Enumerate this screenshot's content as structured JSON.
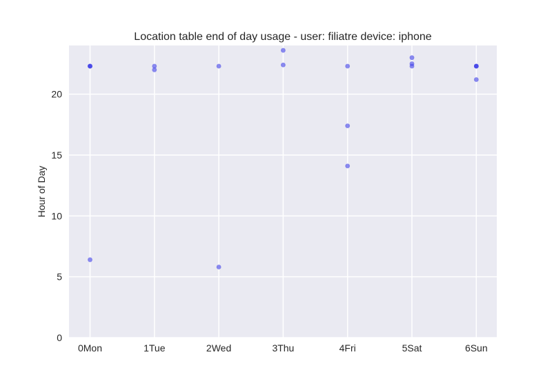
{
  "chart_data": {
    "type": "scatter",
    "title": "Location table end of day usage -  user: filiatre device: iphone",
    "xlabel": "",
    "ylabel": "Hour of Day",
    "categories": [
      "0Mon",
      "1Tue",
      "2Wed",
      "3Thu",
      "4Fri",
      "5Sat",
      "6Sun"
    ],
    "yticks": [
      0,
      5,
      10,
      15,
      20
    ],
    "ylim": [
      0,
      24
    ],
    "grid": true,
    "colors": {
      "background": "#EAEAF2",
      "grid": "#FFFFFF",
      "point": "#4040E8",
      "text": "#262626"
    },
    "points": [
      {
        "x": 0,
        "y": 22.3
      },
      {
        "x": 0,
        "y": 22.3
      },
      {
        "x": 0,
        "y": 22.3
      },
      {
        "x": 0,
        "y": 6.4
      },
      {
        "x": 1,
        "y": 22.3
      },
      {
        "x": 1,
        "y": 22.0
      },
      {
        "x": 2,
        "y": 22.3
      },
      {
        "x": 2,
        "y": 5.8
      },
      {
        "x": 3,
        "y": 23.6
      },
      {
        "x": 3,
        "y": 22.4
      },
      {
        "x": 4,
        "y": 22.3
      },
      {
        "x": 4,
        "y": 17.4
      },
      {
        "x": 4,
        "y": 14.1
      },
      {
        "x": 5,
        "y": 23.0
      },
      {
        "x": 5,
        "y": 22.5
      },
      {
        "x": 5,
        "y": 22.3
      },
      {
        "x": 6,
        "y": 22.3
      },
      {
        "x": 6,
        "y": 22.3
      },
      {
        "x": 6,
        "y": 22.3
      },
      {
        "x": 6,
        "y": 21.2
      }
    ]
  }
}
